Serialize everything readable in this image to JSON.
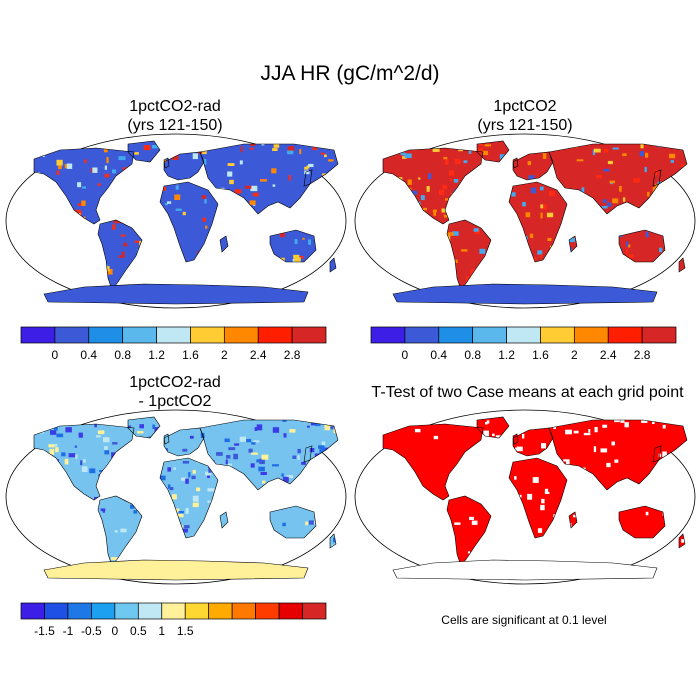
{
  "figure": {
    "title": "JJA HR (gC/m^2/d)",
    "note": "Cells are significant at 0.1 level"
  },
  "panels": [
    {
      "id": "p1",
      "title_line1": "1pctCO2-rad",
      "title_line2": "(yrs 121-150)",
      "ocean_color": "#ffffff",
      "land_color": "#3c5ad8",
      "antarctic_color": "#3c5ad8",
      "accent_colors": [
        "#ff2a12",
        "#d62626",
        "#ffcc33",
        "#ff8800",
        "#44aaf0",
        "#bfe8f4"
      ],
      "accent_density": 0.28
    },
    {
      "id": "p2",
      "title_line1": "1pctCO2",
      "title_line2": "(yrs 121-150)",
      "ocean_color": "#ffffff",
      "land_color": "#d62626",
      "antarctic_color": "#3c5ad8",
      "accent_colors": [
        "#3c5ad8",
        "#ffcc33",
        "#ff8800",
        "#ff2a12",
        "#44aaf0"
      ],
      "accent_density": 0.35
    },
    {
      "id": "p3",
      "title_line1": "1pctCO2-rad",
      "title_line2": "- 1pctCO2",
      "ocean_color": "#ffffff",
      "land_color": "#76c3ef",
      "antarctic_color": "#fff09a",
      "accent_colors": [
        "#3c3ce6",
        "#1e6ee6",
        "#bfe8f4",
        "#fff09a",
        "#3c5ad8"
      ],
      "accent_density": 0.45
    },
    {
      "id": "p4",
      "title_line1": "T-Test of two Case means at each grid point",
      "title_line2": "",
      "ocean_color": "#ffffff",
      "land_color": "#ff0000",
      "antarctic_color": "#ffffff",
      "accent_colors": [
        "#ffffff"
      ],
      "accent_density": 0.16
    }
  ],
  "colorbars": [
    {
      "id": "cb1",
      "colors": [
        "#3c1ee6",
        "#3c5ad8",
        "#1e8ee6",
        "#5ab8ec",
        "#bfe8f4",
        "#ffcc33",
        "#ff8800",
        "#ff1e00",
        "#d62626"
      ],
      "labels": [
        "0",
        "0.4",
        "0.8",
        "1.2",
        "1.6",
        "2",
        "2.4",
        "2.8"
      ]
    },
    {
      "id": "cb2",
      "colors": [
        "#3c1ee6",
        "#3c5ad8",
        "#1e8ee6",
        "#5ab8ec",
        "#bfe8f4",
        "#ffcc33",
        "#ff8800",
        "#ff1e00",
        "#d62626"
      ],
      "labels": [
        "0",
        "0.4",
        "0.8",
        "1.2",
        "1.6",
        "2",
        "2.4",
        "2.8"
      ]
    },
    {
      "id": "cb3",
      "colors": [
        "#3c1ee6",
        "#1e50e6",
        "#1e78e6",
        "#1ea0f0",
        "#6ec8f0",
        "#bfe8f4",
        "#fff09a",
        "#ffd733",
        "#ffaa00",
        "#ff7800",
        "#ff3c00",
        "#e60000",
        "#d62626"
      ],
      "labels": [
        "-1.5",
        "-1",
        "-0.5",
        "0",
        "0.5",
        "1",
        "1.5"
      ]
    }
  ]
}
